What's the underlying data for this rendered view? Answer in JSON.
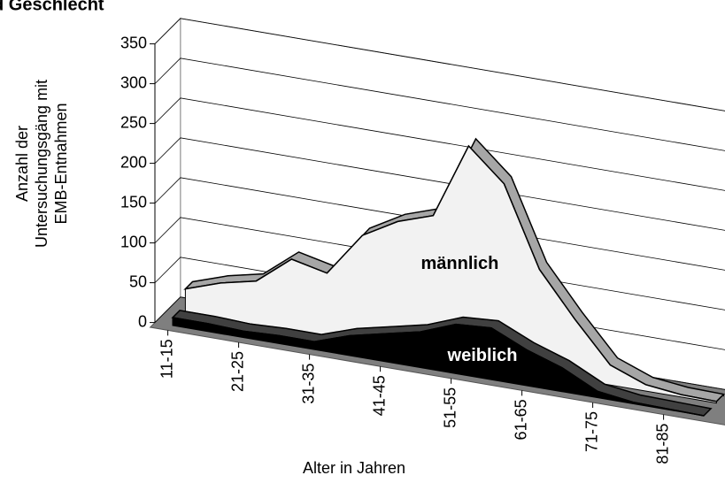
{
  "chart_data": {
    "type": "area3d",
    "title": "d Geschlecht",
    "y_label": [
      "Anzahl der",
      "Untersuchungsgäng mit",
      "EMB-Entnahmen"
    ],
    "x_label": "Alter in Jahren",
    "categories": [
      "11-15",
      null,
      "21-25",
      null,
      "31-35",
      null,
      "41-45",
      null,
      "51-55",
      null,
      "61-65",
      null,
      "71-75",
      null,
      "81-85",
      null
    ],
    "series": [
      {
        "name": "weiblich",
        "color": "#000000",
        "edge": "#404040",
        "values": [
          10,
          10,
          8,
          10,
          10,
          25,
          35,
          45,
          62,
          65,
          45,
          30,
          8,
          2,
          1,
          0
        ]
      },
      {
        "name": "männlich",
        "color": "#f2f2f2",
        "edge": "#a6a6a6",
        "values": [
          30,
          45,
          55,
          90,
          80,
          135,
          160,
          175,
          270,
          230,
          130,
          75,
          25,
          8,
          3,
          2
        ]
      }
    ],
    "ylim": [
      0,
      350
    ],
    "yticks": [
      0,
      50,
      100,
      150,
      200,
      250,
      300,
      350
    ],
    "grid": true
  }
}
